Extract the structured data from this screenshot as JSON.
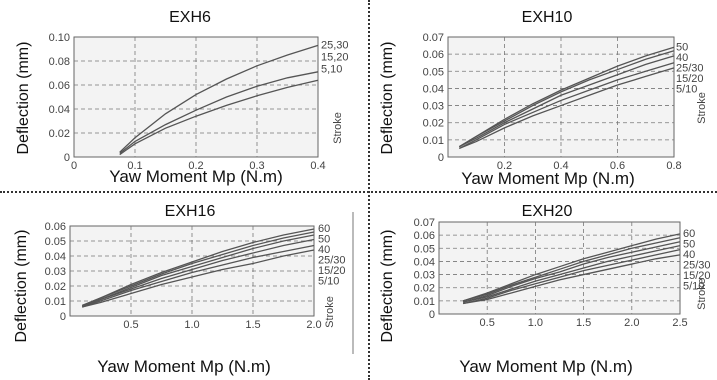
{
  "chart_data": [
    {
      "type": "line",
      "title": "EXH6",
      "xlabel": "Yaw Moment Mp  (N.m)",
      "ylabel": "Deflection  (mm)",
      "series_axis_label": "Stroke",
      "xlim": [
        0,
        0.4
      ],
      "ylim": [
        0,
        0.1
      ],
      "x_ticks": [
        "0",
        "0.1",
        "0.2",
        "0.3",
        "0.4"
      ],
      "y_ticks": [
        "0",
        "0.02",
        "0.04",
        "0.06",
        "0.08",
        "0.10"
      ],
      "grid": true,
      "series": [
        {
          "name": "25,30",
          "x": [
            0.075,
            0.1,
            0.15,
            0.2,
            0.25,
            0.3,
            0.35,
            0.4
          ],
          "y": [
            0.004,
            0.016,
            0.036,
            0.052,
            0.065,
            0.076,
            0.085,
            0.093
          ]
        },
        {
          "name": "15,20",
          "x": [
            0.075,
            0.1,
            0.15,
            0.2,
            0.25,
            0.3,
            0.35,
            0.4
          ],
          "y": [
            0.003,
            0.013,
            0.027,
            0.039,
            0.05,
            0.059,
            0.066,
            0.071
          ]
        },
        {
          "name": "5,10",
          "x": [
            0.075,
            0.1,
            0.15,
            0.2,
            0.25,
            0.3,
            0.35,
            0.4
          ],
          "y": [
            0.002,
            0.011,
            0.024,
            0.034,
            0.043,
            0.051,
            0.058,
            0.064
          ]
        }
      ]
    },
    {
      "type": "line",
      "title": "EXH10",
      "xlabel": "Yaw Moment Mp  (N.m)",
      "ylabel": "Deflection  (mm)",
      "series_axis_label": "Stroke",
      "xlim": [
        0,
        0.8
      ],
      "ylim": [
        0,
        0.07
      ],
      "x_ticks": [
        "0.2",
        "0.4",
        "0.6",
        "0.8"
      ],
      "y_ticks": [
        "0",
        "0.01",
        "0.02",
        "0.03",
        "0.04",
        "0.05",
        "0.06",
        "0.07"
      ],
      "grid": true,
      "series": [
        {
          "name": "50",
          "x": [
            0.04,
            0.1,
            0.2,
            0.3,
            0.4,
            0.5,
            0.6,
            0.7,
            0.8
          ],
          "y": [
            0.006,
            0.012,
            0.022,
            0.031,
            0.039,
            0.046,
            0.053,
            0.059,
            0.064
          ]
        },
        {
          "name": "40",
          "x": [
            0.04,
            0.1,
            0.2,
            0.3,
            0.4,
            0.5,
            0.6,
            0.7,
            0.8
          ],
          "y": [
            0.006,
            0.012,
            0.021,
            0.03,
            0.038,
            0.045,
            0.051,
            0.057,
            0.062
          ]
        },
        {
          "name": "25/30",
          "x": [
            0.04,
            0.1,
            0.2,
            0.3,
            0.4,
            0.5,
            0.6,
            0.7,
            0.8
          ],
          "y": [
            0.006,
            0.011,
            0.02,
            0.028,
            0.036,
            0.042,
            0.048,
            0.054,
            0.059
          ]
        },
        {
          "name": "15/20",
          "x": [
            0.04,
            0.1,
            0.2,
            0.3,
            0.4,
            0.5,
            0.6,
            0.7,
            0.8
          ],
          "y": [
            0.005,
            0.01,
            0.019,
            0.026,
            0.033,
            0.039,
            0.045,
            0.05,
            0.055
          ]
        },
        {
          "name": "5/10",
          "x": [
            0.04,
            0.1,
            0.2,
            0.3,
            0.4,
            0.5,
            0.6,
            0.7,
            0.8
          ],
          "y": [
            0.005,
            0.009,
            0.017,
            0.024,
            0.03,
            0.036,
            0.042,
            0.047,
            0.052
          ]
        }
      ]
    },
    {
      "type": "line",
      "title": "EXH16",
      "xlabel": "Yaw Moment Mp  (N.m)",
      "ylabel": "Deflection  (mm)",
      "series_axis_label": "Stroke",
      "xlim": [
        0,
        2.0
      ],
      "ylim": [
        0,
        0.06
      ],
      "x_ticks": [
        "0.5",
        "1.0",
        "1.5",
        "2.0"
      ],
      "y_ticks": [
        "0",
        "0.01",
        "0.02",
        "0.03",
        "0.04",
        "0.05",
        "0.06"
      ],
      "grid": true,
      "series": [
        {
          "name": "60",
          "x": [
            0.1,
            0.25,
            0.5,
            0.75,
            1.0,
            1.25,
            1.5,
            1.75,
            2.0
          ],
          "y": [
            0.007,
            0.012,
            0.021,
            0.029,
            0.036,
            0.043,
            0.049,
            0.054,
            0.058
          ]
        },
        {
          "name": "50",
          "x": [
            0.1,
            0.25,
            0.5,
            0.75,
            1.0,
            1.25,
            1.5,
            1.75,
            2.0
          ],
          "y": [
            0.007,
            0.012,
            0.02,
            0.028,
            0.035,
            0.041,
            0.047,
            0.052,
            0.056
          ]
        },
        {
          "name": "40",
          "x": [
            0.1,
            0.25,
            0.5,
            0.75,
            1.0,
            1.25,
            1.5,
            1.75,
            2.0
          ],
          "y": [
            0.007,
            0.011,
            0.019,
            0.027,
            0.033,
            0.039,
            0.045,
            0.05,
            0.054
          ]
        },
        {
          "name": "25/30",
          "x": [
            0.1,
            0.25,
            0.5,
            0.75,
            1.0,
            1.25,
            1.5,
            1.75,
            2.0
          ],
          "y": [
            0.006,
            0.011,
            0.018,
            0.025,
            0.031,
            0.037,
            0.042,
            0.047,
            0.051
          ]
        },
        {
          "name": "15/20",
          "x": [
            0.1,
            0.25,
            0.5,
            0.75,
            1.0,
            1.25,
            1.5,
            1.75,
            2.0
          ],
          "y": [
            0.006,
            0.01,
            0.017,
            0.023,
            0.029,
            0.034,
            0.039,
            0.043,
            0.047
          ]
        },
        {
          "name": "5/10",
          "x": [
            0.1,
            0.25,
            0.5,
            0.75,
            1.0,
            1.25,
            1.5,
            1.75,
            2.0
          ],
          "y": [
            0.006,
            0.009,
            0.015,
            0.021,
            0.026,
            0.031,
            0.035,
            0.04,
            0.044
          ]
        }
      ]
    },
    {
      "type": "line",
      "title": "EXH20",
      "xlabel": "Yaw Moment Mp  (N.m)",
      "ylabel": "Deflection  (mm)",
      "series_axis_label": "Stroke",
      "xlim": [
        0,
        2.5
      ],
      "ylim": [
        0,
        0.07
      ],
      "x_ticks": [
        "0.5",
        "1.0",
        "1.5",
        "2.0",
        "2.5"
      ],
      "y_ticks": [
        "0",
        "0.01",
        "0.02",
        "0.03",
        "0.04",
        "0.05",
        "0.06",
        "0.07"
      ],
      "grid": true,
      "series": [
        {
          "name": "60",
          "x": [
            0.25,
            0.5,
            0.75,
            1.0,
            1.25,
            1.5,
            1.75,
            2.0,
            2.25,
            2.5
          ],
          "y": [
            0.01,
            0.016,
            0.023,
            0.03,
            0.036,
            0.042,
            0.047,
            0.052,
            0.057,
            0.061
          ]
        },
        {
          "name": "50",
          "x": [
            0.25,
            0.5,
            0.75,
            1.0,
            1.25,
            1.5,
            1.75,
            2.0,
            2.25,
            2.5
          ],
          "y": [
            0.01,
            0.015,
            0.022,
            0.028,
            0.034,
            0.04,
            0.045,
            0.05,
            0.054,
            0.058
          ]
        },
        {
          "name": "40",
          "x": [
            0.25,
            0.5,
            0.75,
            1.0,
            1.25,
            1.5,
            1.75,
            2.0,
            2.25,
            2.5
          ],
          "y": [
            0.009,
            0.014,
            0.021,
            0.027,
            0.032,
            0.038,
            0.043,
            0.047,
            0.051,
            0.055
          ]
        },
        {
          "name": "25/30",
          "x": [
            0.25,
            0.5,
            0.75,
            1.0,
            1.25,
            1.5,
            1.75,
            2.0,
            2.25,
            2.5
          ],
          "y": [
            0.009,
            0.013,
            0.019,
            0.025,
            0.03,
            0.035,
            0.04,
            0.044,
            0.048,
            0.052
          ]
        },
        {
          "name": "15/20",
          "x": [
            0.25,
            0.5,
            0.75,
            1.0,
            1.25,
            1.5,
            1.75,
            2.0,
            2.25,
            2.5
          ],
          "y": [
            0.008,
            0.012,
            0.018,
            0.023,
            0.028,
            0.033,
            0.037,
            0.041,
            0.045,
            0.049
          ]
        },
        {
          "name": "5/10",
          "x": [
            0.25,
            0.5,
            0.75,
            1.0,
            1.25,
            1.5,
            1.75,
            2.0,
            2.25,
            2.5
          ],
          "y": [
            0.008,
            0.011,
            0.016,
            0.021,
            0.026,
            0.03,
            0.034,
            0.038,
            0.042,
            0.045
          ]
        }
      ]
    }
  ]
}
